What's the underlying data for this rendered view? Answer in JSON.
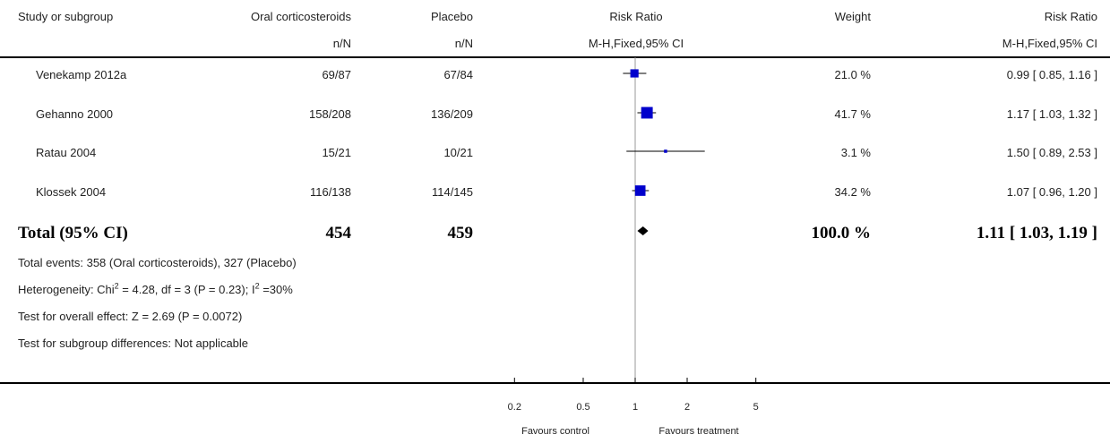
{
  "header": {
    "study": "Study or subgroup",
    "treat": "Oral corticosteroids",
    "treat_sub": "n/N",
    "ctrl": "Placebo",
    "ctrl_sub": "n/N",
    "rr": "Risk Ratio",
    "rr_sub": "M-H,Fixed,95% CI",
    "weight": "Weight",
    "rr2": "Risk Ratio",
    "rr2_sub": "M-H,Fixed,95% CI"
  },
  "studies": [
    {
      "name": "Venekamp 2012a",
      "treat": "69/87",
      "ctrl": "67/84",
      "weight": "21.0 %",
      "ci_text": "0.99 [ 0.85, 1.16 ]"
    },
    {
      "name": "Gehanno 2000",
      "treat": "158/208",
      "ctrl": "136/209",
      "weight": "41.7 %",
      "ci_text": "1.17 [ 1.03, 1.32 ]"
    },
    {
      "name": "Ratau 2004",
      "treat": "15/21",
      "ctrl": "10/21",
      "weight": "3.1 %",
      "ci_text": "1.50 [ 0.89, 2.53 ]"
    },
    {
      "name": "Klossek 2004",
      "treat": "116/138",
      "ctrl": "114/145",
      "weight": "34.2 %",
      "ci_text": "1.07 [ 0.96, 1.20 ]"
    }
  ],
  "total": {
    "label": "Total (95% CI)",
    "treat": "454",
    "ctrl": "459",
    "weight": "100.0 %",
    "ci_text": "1.11 [ 1.03, 1.19 ]"
  },
  "footnotes": {
    "events": "Total events: 358 (Oral corticosteroids), 327 (Placebo)",
    "het_pre": "Heterogeneity: Chi",
    "het_mid": " = 4.28, df = 3 (P = 0.23); I",
    "het_post": " =30%",
    "sup2": "2",
    "overall": "Test for overall effect: Z = 2.69 (P = 0.0072)",
    "subgroup": "Test for subgroup differences: Not applicable"
  },
  "axis": {
    "favours_left": "Favours control",
    "favours_right": "Favours treatment"
  },
  "colors": {
    "marker": "#0000cc",
    "line": "#000000"
  },
  "chart_data": {
    "type": "scatter",
    "scale": "log",
    "xlim": [
      0.2,
      5
    ],
    "null_value": 1,
    "ticks": [
      0.2,
      0.5,
      1,
      2,
      5
    ],
    "tick_labels": [
      "0.2",
      "0.5",
      "1",
      "2",
      "5"
    ],
    "studies": [
      {
        "name": "Venekamp 2012a",
        "rr": 0.99,
        "lo": 0.85,
        "hi": 1.16,
        "weight": 21.0
      },
      {
        "name": "Gehanno 2000",
        "rr": 1.17,
        "lo": 1.03,
        "hi": 1.32,
        "weight": 41.7
      },
      {
        "name": "Ratau 2004",
        "rr": 1.5,
        "lo": 0.89,
        "hi": 2.53,
        "weight": 3.1
      },
      {
        "name": "Klossek 2004",
        "rr": 1.07,
        "lo": 0.96,
        "hi": 1.2,
        "weight": 34.2
      }
    ],
    "total": {
      "rr": 1.11,
      "lo": 1.03,
      "hi": 1.19
    }
  }
}
